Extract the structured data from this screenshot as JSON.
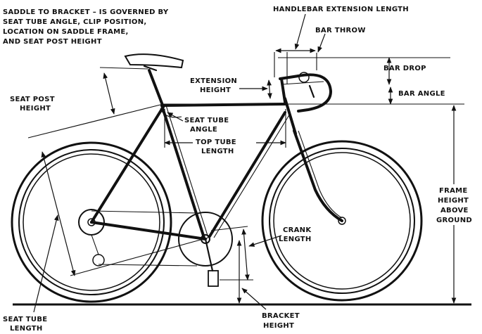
{
  "labels": {
    "saddle_note": [
      "SADDLE TO BRACKET – IS GOVERNED BY",
      "SEAT TUBE ANGLE, CLIP POSITION,",
      "LOCATION ON SADDLE FRAME,",
      "AND SEAT POST HEIGHT"
    ],
    "handlebar_extension": "HANDLEBAR EXTENSION LENGTH",
    "bar_throw": "BAR THROW",
    "bar_drop": "BAR DROP",
    "bar_angle": "BAR ANGLE",
    "extension_height": [
      "EXTENSION",
      "HEIGHT"
    ],
    "seat_post_height": [
      "SEAT POST",
      "HEIGHT"
    ],
    "seat_tube_angle": [
      "SEAT TUBE",
      "ANGLE"
    ],
    "top_tube_length": [
      "TOP TUBE",
      "LENGTH"
    ],
    "frame_height": [
      "FRAME",
      "HEIGHT",
      "ABOVE",
      "GROUND"
    ],
    "crank_length": [
      "CRANK",
      "LENGTH"
    ],
    "bracket_height": [
      "BRACKET",
      "HEIGHT"
    ],
    "seat_tube_length": [
      "SEAT TUBE",
      "LENGTH"
    ]
  }
}
